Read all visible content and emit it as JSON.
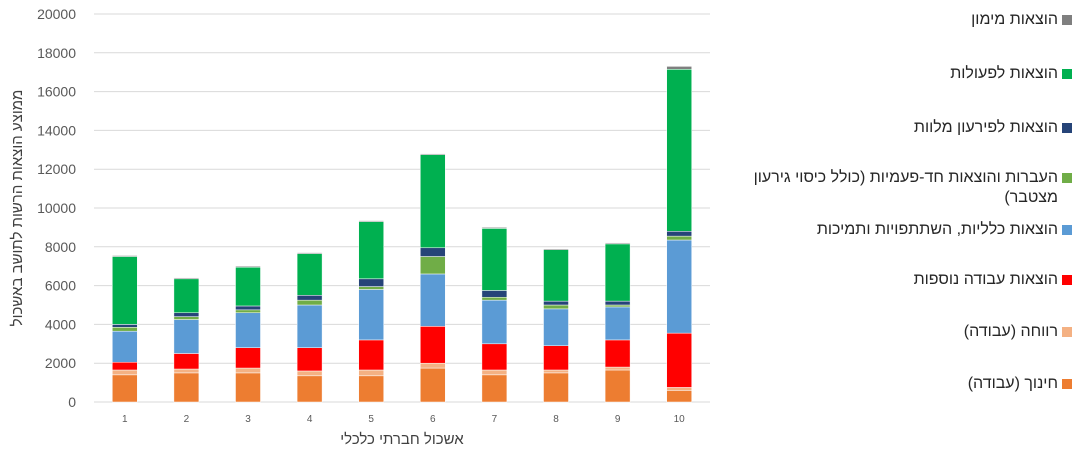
{
  "chart_data": {
    "type": "stacked-bar",
    "categories": [
      "1",
      "2",
      "3",
      "4",
      "5",
      "6",
      "7",
      "8",
      "9",
      "10"
    ],
    "xlabel": "אשכול חברתי כלכלי",
    "ylabel": "ממוצע הוצאות הרשות לתושב באשכול",
    "ylim": [
      0,
      20000
    ],
    "yticks": [
      "0",
      "2000",
      "4000",
      "6000",
      "8000",
      "10000",
      "12000",
      "14000",
      "16000",
      "18000",
      "20000"
    ],
    "grid": true,
    "legend_position": "right",
    "series": [
      {
        "name": "חינוך (עבודה)",
        "color": "#ED7D31",
        "values": [
          1400,
          1500,
          1500,
          1350,
          1350,
          1750,
          1400,
          1500,
          1650,
          600
        ]
      },
      {
        "name": "רווחה (עבודה)",
        "color": "#F4B183",
        "values": [
          250,
          200,
          250,
          250,
          300,
          250,
          250,
          150,
          150,
          150
        ]
      },
      {
        "name": "הוצאות עבודה נוספות",
        "color": "#FF0000",
        "values": [
          400,
          800,
          1050,
          1200,
          1550,
          1900,
          1350,
          1250,
          1400,
          2800
        ]
      },
      {
        "name": "הוצאות כלליות, השתתפויות ותמיכות",
        "color": "#5B9BD5",
        "values": [
          1600,
          1750,
          1800,
          2200,
          2600,
          2700,
          2250,
          1900,
          1700,
          4800
        ]
      },
      {
        "name": "העברות והוצאות חד-פעמיות (כולל כיסוי גירעון מצטבר)",
        "color": "#70AD47",
        "values": [
          200,
          150,
          150,
          250,
          150,
          900,
          150,
          200,
          100,
          200
        ]
      },
      {
        "name": "הוצאות לפירעון מלוות",
        "color": "#264478",
        "values": [
          150,
          200,
          200,
          250,
          400,
          450,
          350,
          200,
          200,
          250
        ]
      },
      {
        "name": "הוצאות לפעולות",
        "color": "#00B050",
        "values": [
          3500,
          1750,
          2000,
          2150,
          2950,
          4800,
          3200,
          2650,
          2950,
          8350
        ]
      },
      {
        "name": "הוצאות מימון",
        "color": "#7F7F7F",
        "values": [
          50,
          50,
          50,
          50,
          50,
          50,
          50,
          50,
          50,
          150
        ]
      }
    ]
  }
}
